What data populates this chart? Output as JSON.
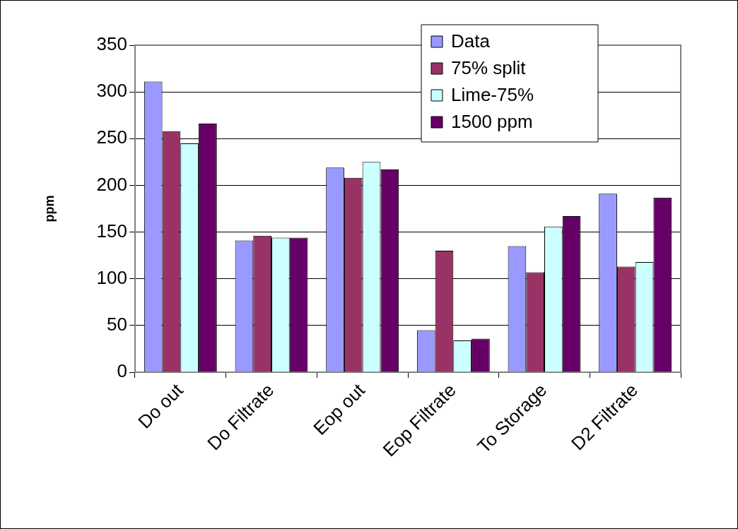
{
  "chart_data": {
    "type": "bar",
    "ylabel": "ppm",
    "categories": [
      "Do out",
      "Do Filtrate",
      "Eop out",
      "Eop Filtrate",
      "To Storage",
      "D2 Filtrate"
    ],
    "series": [
      {
        "name": "Data",
        "color": "#9999ff",
        "values": [
          311,
          141,
          219,
          45,
          135,
          191
        ]
      },
      {
        "name": "75% split",
        "color": "#993366",
        "values": [
          258,
          146,
          208,
          130,
          107,
          113
        ]
      },
      {
        "name": "Lime-75%",
        "color": "#ccffff",
        "values": [
          245,
          144,
          225,
          34,
          156,
          118
        ]
      },
      {
        "name": "1500 ppm",
        "color": "#660066",
        "values": [
          266,
          144,
          217,
          36,
          167,
          187
        ]
      }
    ],
    "ylim": [
      0,
      350
    ],
    "yticks": [
      0,
      50,
      100,
      150,
      200,
      250,
      300,
      350
    ],
    "grid": "y",
    "legend": "top right"
  }
}
